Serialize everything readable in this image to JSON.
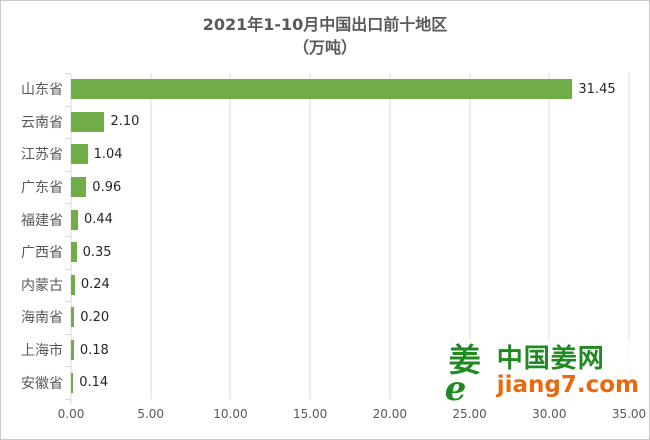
{
  "chart_data": {
    "type": "bar",
    "orientation": "horizontal",
    "title": "2021年1-10月中国出口前十地区",
    "subtitle": "（万吨）",
    "categories": [
      "山东省",
      "云南省",
      "江苏省",
      "广东省",
      "福建省",
      "广西省",
      "内蒙古",
      "海南省",
      "上海市",
      "安徽省"
    ],
    "values": [
      31.45,
      2.1,
      1.04,
      0.96,
      0.44,
      0.35,
      0.24,
      0.2,
      0.18,
      0.14
    ],
    "value_labels": [
      "31.45",
      "2.10",
      "1.04",
      "0.96",
      "0.44",
      "0.35",
      "0.24",
      "0.20",
      "0.18",
      "0.14"
    ],
    "xlabel": "",
    "ylabel": "",
    "xlim": [
      0,
      35
    ],
    "x_ticks": [
      "0.00",
      "5.00",
      "10.00",
      "15.00",
      "20.00",
      "25.00",
      "30.00",
      "35.00"
    ],
    "grid": true,
    "legend": false,
    "bar_color": "#70AD47"
  },
  "watermark": {
    "logo_glyph": "姜",
    "logo_sub_glyph": "e",
    "site_name": "中国姜网",
    "site_url": "jiang7.com",
    "green": "#1f8a21",
    "orange": "#e86a0e"
  }
}
